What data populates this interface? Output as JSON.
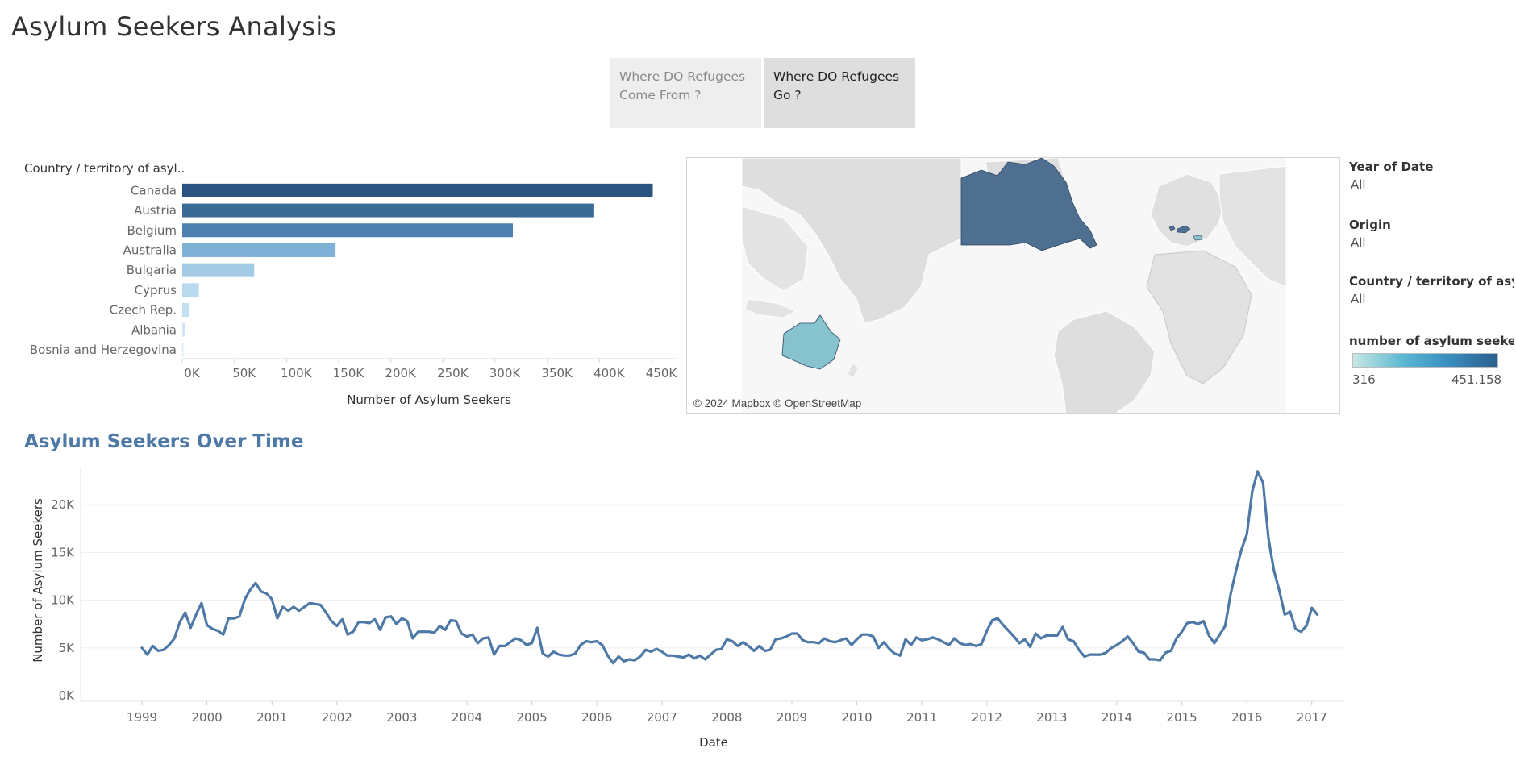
{
  "title": "Asylum Seekers Analysis",
  "nav": {
    "from_label": "Where DO Refugees Come  From ?",
    "go_label": "Where DO Refugees Go ?"
  },
  "filters": {
    "year": {
      "label": "Year of Date",
      "value": "All"
    },
    "origin": {
      "label": "Origin",
      "value": "All"
    },
    "country": {
      "label": "Country / territory of asyl..",
      "value": "All"
    },
    "legend": {
      "label": "number of asylum seekers",
      "min": "316",
      "max": "451,158"
    }
  },
  "map": {
    "attribution": "© 2024 Mapbox © OpenStreetMap"
  },
  "colors": {
    "accent": "#4e79a7",
    "bar_shades": [
      "#2b5580",
      "#3c6a97",
      "#4f81b0",
      "#7fb0d6",
      "#a3cbe6",
      "#b8d9ee",
      "#c2def1",
      "#cfe5f4",
      "#dbecf7"
    ]
  },
  "chart_data": [
    {
      "type": "bar",
      "orientation": "horizontal",
      "row_header": "Country / territory of asyl..",
      "categories": [
        "Canada",
        "Austria",
        "Belgium",
        "Australia",
        "Bulgaria",
        "Cyprus",
        "Czech Rep.",
        "Albania",
        "Bosnia and Herzegovina"
      ],
      "values": [
        451158,
        395000,
        317000,
        147000,
        69000,
        16000,
        6500,
        2400,
        316
      ],
      "xlabel": "Number of Asylum Seekers",
      "xlim": [
        0,
        475000
      ],
      "xticks": [
        "0K",
        "50K",
        "100K",
        "150K",
        "200K",
        "250K",
        "300K",
        "350K",
        "400K",
        "450K"
      ],
      "grid": false
    },
    {
      "type": "line",
      "title": "Asylum Seekers Over Time",
      "xlabel": "Date",
      "ylabel": "Number of Asylum Seekers",
      "ylim": [
        0,
        24000
      ],
      "yticks": [
        "0K",
        "5K",
        "10K",
        "15K",
        "20K"
      ],
      "xticks": [
        "1999",
        "2000",
        "2001",
        "2002",
        "2003",
        "2004",
        "2005",
        "2006",
        "2007",
        "2008",
        "2009",
        "2010",
        "2011",
        "2012",
        "2013",
        "2014",
        "2015",
        "2016",
        "2017"
      ],
      "x_start": "1999-01",
      "x_step": "month",
      "series": [
        {
          "values": [
            5000,
            4300,
            5200,
            4700,
            4800,
            5300,
            6000,
            7700,
            8700,
            7100,
            8500,
            9700,
            7400,
            7000,
            6800,
            6400,
            8100,
            8100,
            8300,
            10100,
            11100,
            11800,
            10900,
            10700,
            10100,
            8100,
            9300,
            8900,
            9300,
            8900,
            9300,
            9700,
            9600,
            9500,
            8700,
            7800,
            7300,
            8000,
            6400,
            6700,
            7700,
            7700,
            7600,
            8000,
            6900,
            8200,
            8300,
            7500,
            8100,
            7800,
            6000,
            6700,
            6700,
            6700,
            6600,
            7300,
            6900,
            7900,
            7800,
            6500,
            6200,
            6400,
            5500,
            6000,
            6100,
            4300,
            5200,
            5200,
            5600,
            6000,
            5800,
            5300,
            5500,
            7100,
            4400,
            4100,
            4600,
            4300,
            4200,
            4200,
            4400,
            5300,
            5700,
            5600,
            5700,
            5300,
            4200,
            3400,
            4100,
            3600,
            3800,
            3700,
            4100,
            4800,
            4600,
            4900,
            4600,
            4200,
            4200,
            4100,
            4000,
            4300,
            3900,
            4200,
            3800,
            4300,
            4800,
            4900,
            5900,
            5700,
            5200,
            5600,
            5200,
            4700,
            5200,
            4700,
            4800,
            5900,
            6000,
            6200,
            6500,
            6500,
            5800,
            5600,
            5600,
            5500,
            6000,
            5700,
            5600,
            5800,
            6000,
            5300,
            5900,
            6400,
            6400,
            6200,
            5000,
            5600,
            4900,
            4400,
            4200,
            5900,
            5300,
            6100,
            5800,
            5900,
            6100,
            5900,
            5600,
            5300,
            6000,
            5500,
            5300,
            5400,
            5200,
            5400,
            6800,
            7900,
            8100,
            7400,
            6800,
            6200,
            5500,
            5900,
            5100,
            6500,
            6000,
            6300,
            6300,
            6300,
            7200,
            5900,
            5700,
            4800,
            4100,
            4300,
            4300,
            4300,
            4500,
            5000,
            5300,
            5700,
            6200,
            5500,
            4600,
            4500,
            3800,
            3800,
            3700,
            4500,
            4700,
            6000,
            6700,
            7600,
            7700,
            7500,
            7800,
            6300,
            5500,
            6400,
            7300,
            10600,
            13100,
            15300,
            16900,
            21400,
            23500,
            22300,
            16400,
            13100,
            11000,
            8500,
            8800,
            7000,
            6700,
            7300,
            9200,
            8500
          ]
        }
      ],
      "grid": "horizontal"
    }
  ]
}
